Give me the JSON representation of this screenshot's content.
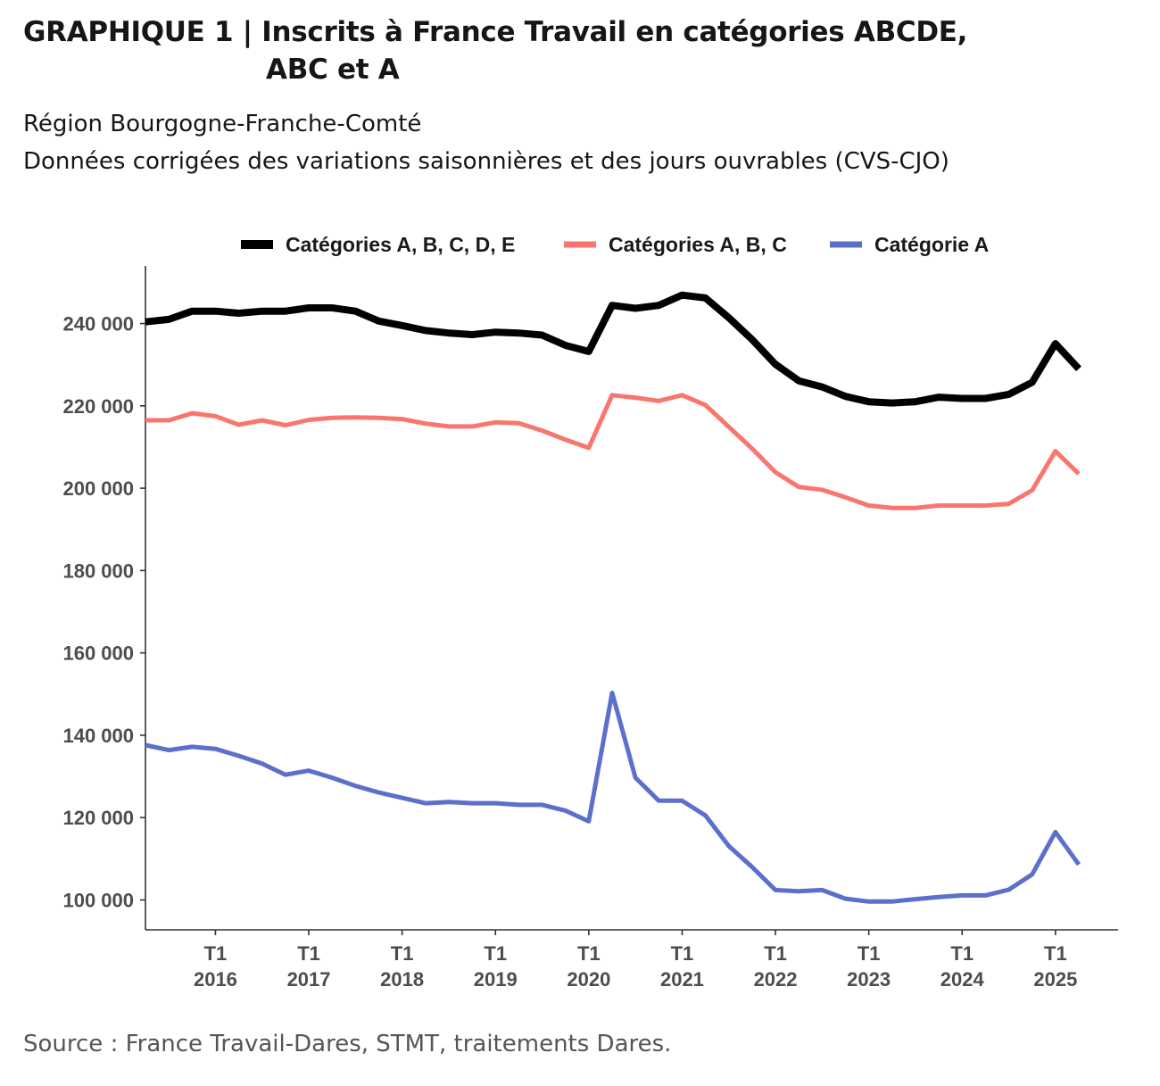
{
  "header": {
    "title_line1": "GRAPHIQUE 1 | Inscrits à France Travail en catégories ABCDE,",
    "title_line2": "ABC et A",
    "subtitle1": "Région Bourgogne-Franche-Comté",
    "subtitle2": "Données corrigées des variations saisonnières et des jours ouvrables (CVS-CJO)"
  },
  "footer": {
    "source": "Source : France Travail-Dares, STMT, traitements Dares."
  },
  "chart_data": {
    "type": "line",
    "title": "",
    "xlabel": "",
    "ylabel": "",
    "grid": false,
    "legend_position": "top",
    "x_unit": "quarter",
    "x": [
      "2015-T2",
      "2015-T3",
      "2015-T4",
      "2016-T1",
      "2016-T2",
      "2016-T3",
      "2016-T4",
      "2017-T1",
      "2017-T2",
      "2017-T3",
      "2017-T4",
      "2018-T1",
      "2018-T2",
      "2018-T3",
      "2018-T4",
      "2019-T1",
      "2019-T2",
      "2019-T3",
      "2019-T4",
      "2020-T1",
      "2020-T2",
      "2020-T3",
      "2020-T4",
      "2021-T1",
      "2021-T2",
      "2021-T3",
      "2021-T4",
      "2022-T1",
      "2022-T2",
      "2022-T3",
      "2022-T4",
      "2023-T1",
      "2023-T2",
      "2023-T3",
      "2023-T4",
      "2024-T1",
      "2024-T2",
      "2024-T3",
      "2024-T4",
      "2025-T1",
      "2025-T2"
    ],
    "x_ticks": [
      {
        "line1": "T1",
        "line2": "2016",
        "x": "2016-T1"
      },
      {
        "line1": "T1",
        "line2": "2017",
        "x": "2017-T1"
      },
      {
        "line1": "T1",
        "line2": "2018",
        "x": "2018-T1"
      },
      {
        "line1": "T1",
        "line2": "2019",
        "x": "2019-T1"
      },
      {
        "line1": "T1",
        "line2": "2020",
        "x": "2020-T1"
      },
      {
        "line1": "T1",
        "line2": "2021",
        "x": "2021-T1"
      },
      {
        "line1": "T1",
        "line2": "2022",
        "x": "2022-T1"
      },
      {
        "line1": "T1",
        "line2": "2023",
        "x": "2023-T1"
      },
      {
        "line1": "T1",
        "line2": "2024",
        "x": "2024-T1"
      },
      {
        "line1": "T1",
        "line2": "2025",
        "x": "2025-T1"
      }
    ],
    "ylim": [
      93000,
      254000
    ],
    "y_ticks": [
      {
        "value": 100000,
        "label": "100 000"
      },
      {
        "value": 120000,
        "label": "120 000"
      },
      {
        "value": 140000,
        "label": "140 000"
      },
      {
        "value": 160000,
        "label": "160 000"
      },
      {
        "value": 180000,
        "label": "180 000"
      },
      {
        "value": 200000,
        "label": "200 000"
      },
      {
        "value": 220000,
        "label": "220 000"
      },
      {
        "value": 240000,
        "label": "240 000"
      }
    ],
    "series": [
      {
        "name": "Catégories A, B, C, D, E",
        "color": "#000000",
        "values": [
          240400,
          241000,
          243000,
          243000,
          242500,
          243000,
          243000,
          243800,
          243800,
          243000,
          240600,
          239500,
          238300,
          237700,
          237300,
          237900,
          237700,
          237200,
          234700,
          233200,
          244400,
          243700,
          244400,
          246900,
          246200,
          241400,
          236100,
          230100,
          226100,
          224600,
          222300,
          221000,
          220700,
          221000,
          222100,
          221800,
          221800,
          222800,
          225700,
          235100,
          229000
        ]
      },
      {
        "name": "Catégories A, B, C",
        "color": "#f8766d",
        "values": [
          216500,
          216500,
          218200,
          217500,
          215400,
          216500,
          215300,
          216600,
          217100,
          217200,
          217100,
          216800,
          215700,
          215000,
          215000,
          216000,
          215800,
          214000,
          211800,
          209800,
          222600,
          222000,
          221200,
          222600,
          220200,
          214900,
          209600,
          203900,
          200300,
          199600,
          197800,
          195800,
          195200,
          195200,
          195800,
          195800,
          195800,
          196200,
          199500,
          209000,
          203500
        ]
      },
      {
        "name": "Catégorie A",
        "color": "#5b6fcc",
        "values": [
          137600,
          136400,
          137200,
          136700,
          135000,
          133100,
          130400,
          131400,
          129700,
          127700,
          126100,
          124800,
          123500,
          123800,
          123500,
          123500,
          123100,
          123100,
          121700,
          119100,
          150300,
          129700,
          124100,
          124100,
          120500,
          113100,
          108000,
          102400,
          102100,
          102400,
          100300,
          99600,
          99600,
          100200,
          100700,
          101100,
          101100,
          102500,
          106200,
          116500,
          108600
        ]
      }
    ]
  }
}
